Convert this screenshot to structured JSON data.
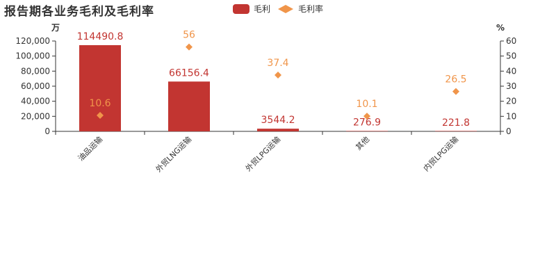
{
  "title": "报告期各业务毛利及毛利率",
  "legend": {
    "bar_label": "毛利",
    "line_label": "毛利率"
  },
  "colors": {
    "bar": "#c23531",
    "marker": "#f0954a",
    "bar_label": "#c23531",
    "marker_label": "#f0954a",
    "axis": "#333333"
  },
  "chart_data": {
    "type": "bar",
    "categories": [
      "油品运输",
      "外贸LNG运输",
      "外贸LPG运输",
      "其他",
      "内贸LPG运输"
    ],
    "series": [
      {
        "name": "毛利",
        "type": "bar",
        "axis": "left",
        "values": [
          114490.8,
          66156.4,
          3544.2,
          276.9,
          221.8
        ]
      },
      {
        "name": "毛利率",
        "type": "scatter",
        "axis": "right",
        "values": [
          10.6,
          56,
          37.4,
          10.1,
          26.5
        ]
      }
    ],
    "left_axis": {
      "unit_label": "万",
      "min": 0,
      "max": 120000,
      "ticks": [
        "0",
        "20,000",
        "40,000",
        "60,000",
        "80,000",
        "100,000",
        "120,000"
      ]
    },
    "right_axis": {
      "unit_label": "%",
      "min": 0,
      "max": 60,
      "ticks": [
        "0",
        "10",
        "20",
        "30",
        "40",
        "50",
        "60"
      ]
    },
    "grid": false,
    "legend_position": "top-center"
  }
}
